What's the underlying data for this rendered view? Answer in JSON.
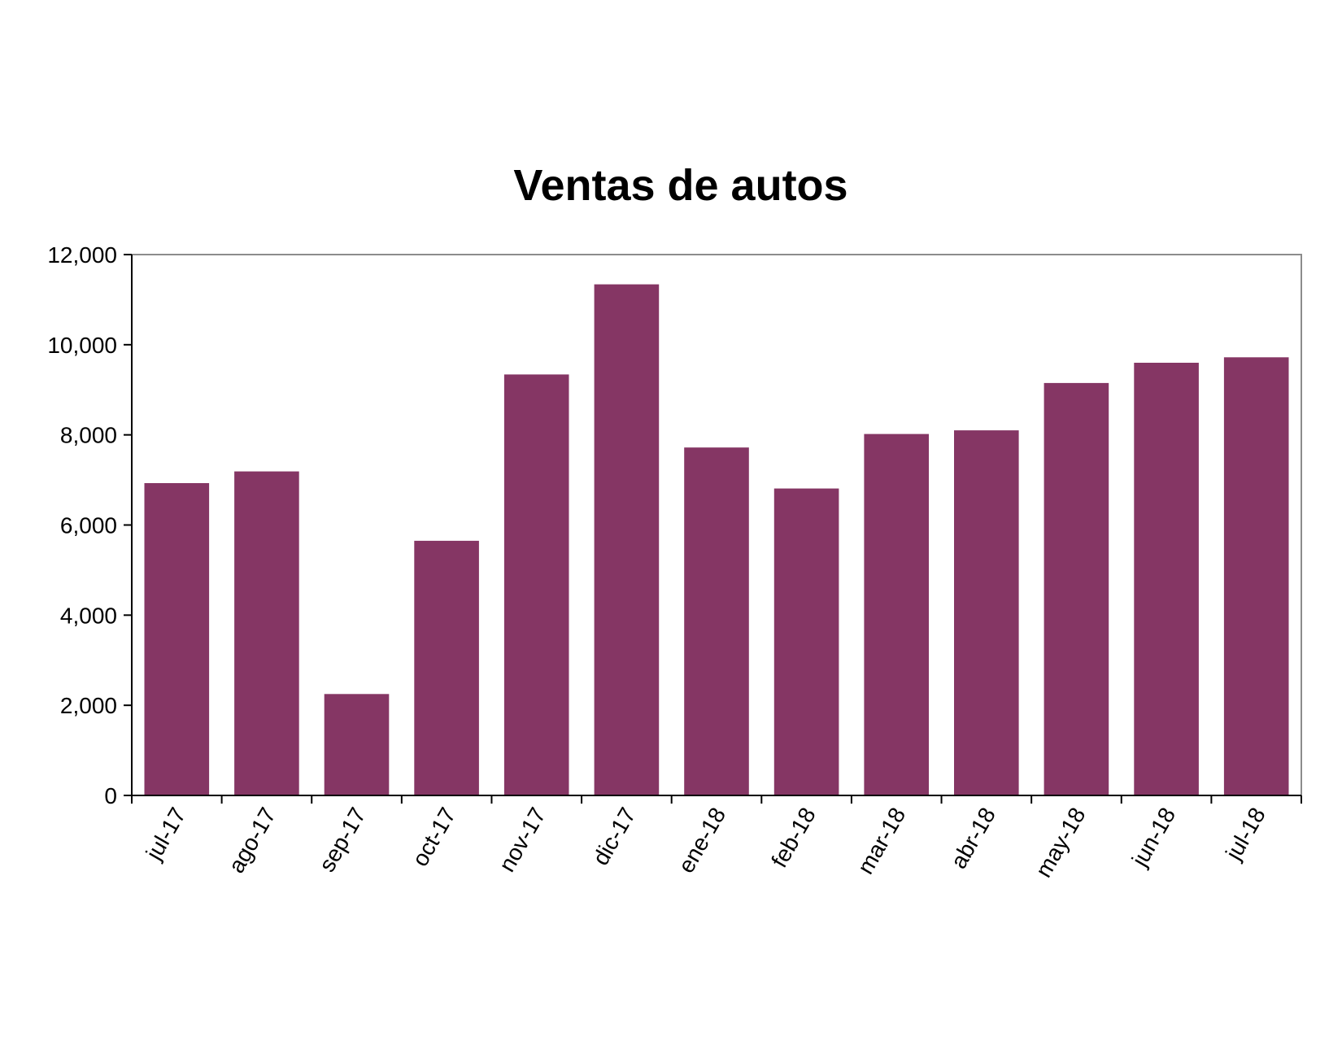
{
  "chart_data": {
    "type": "bar",
    "title": "Ventas de autos",
    "xlabel": "",
    "ylabel": "",
    "categories": [
      "jul-17",
      "ago-17",
      "sep-17",
      "oct-17",
      "nov-17",
      "dic-17",
      "ene-18",
      "feb-18",
      "mar-18",
      "abr-18",
      "may-18",
      "jun-18",
      "jul-18"
    ],
    "values": [
      6930,
      7190,
      2250,
      5650,
      9340,
      11340,
      7720,
      6810,
      8020,
      8100,
      9150,
      9600,
      9720
    ],
    "ylim": [
      0,
      12000
    ],
    "yticks": [
      0,
      2000,
      4000,
      6000,
      8000,
      10000,
      12000
    ],
    "ytick_labels": [
      "0",
      "2,000",
      "4,000",
      "6,000",
      "8,000",
      "10,000",
      "12,000"
    ],
    "grid": false,
    "legend": "none",
    "bar_color": "#853664"
  }
}
